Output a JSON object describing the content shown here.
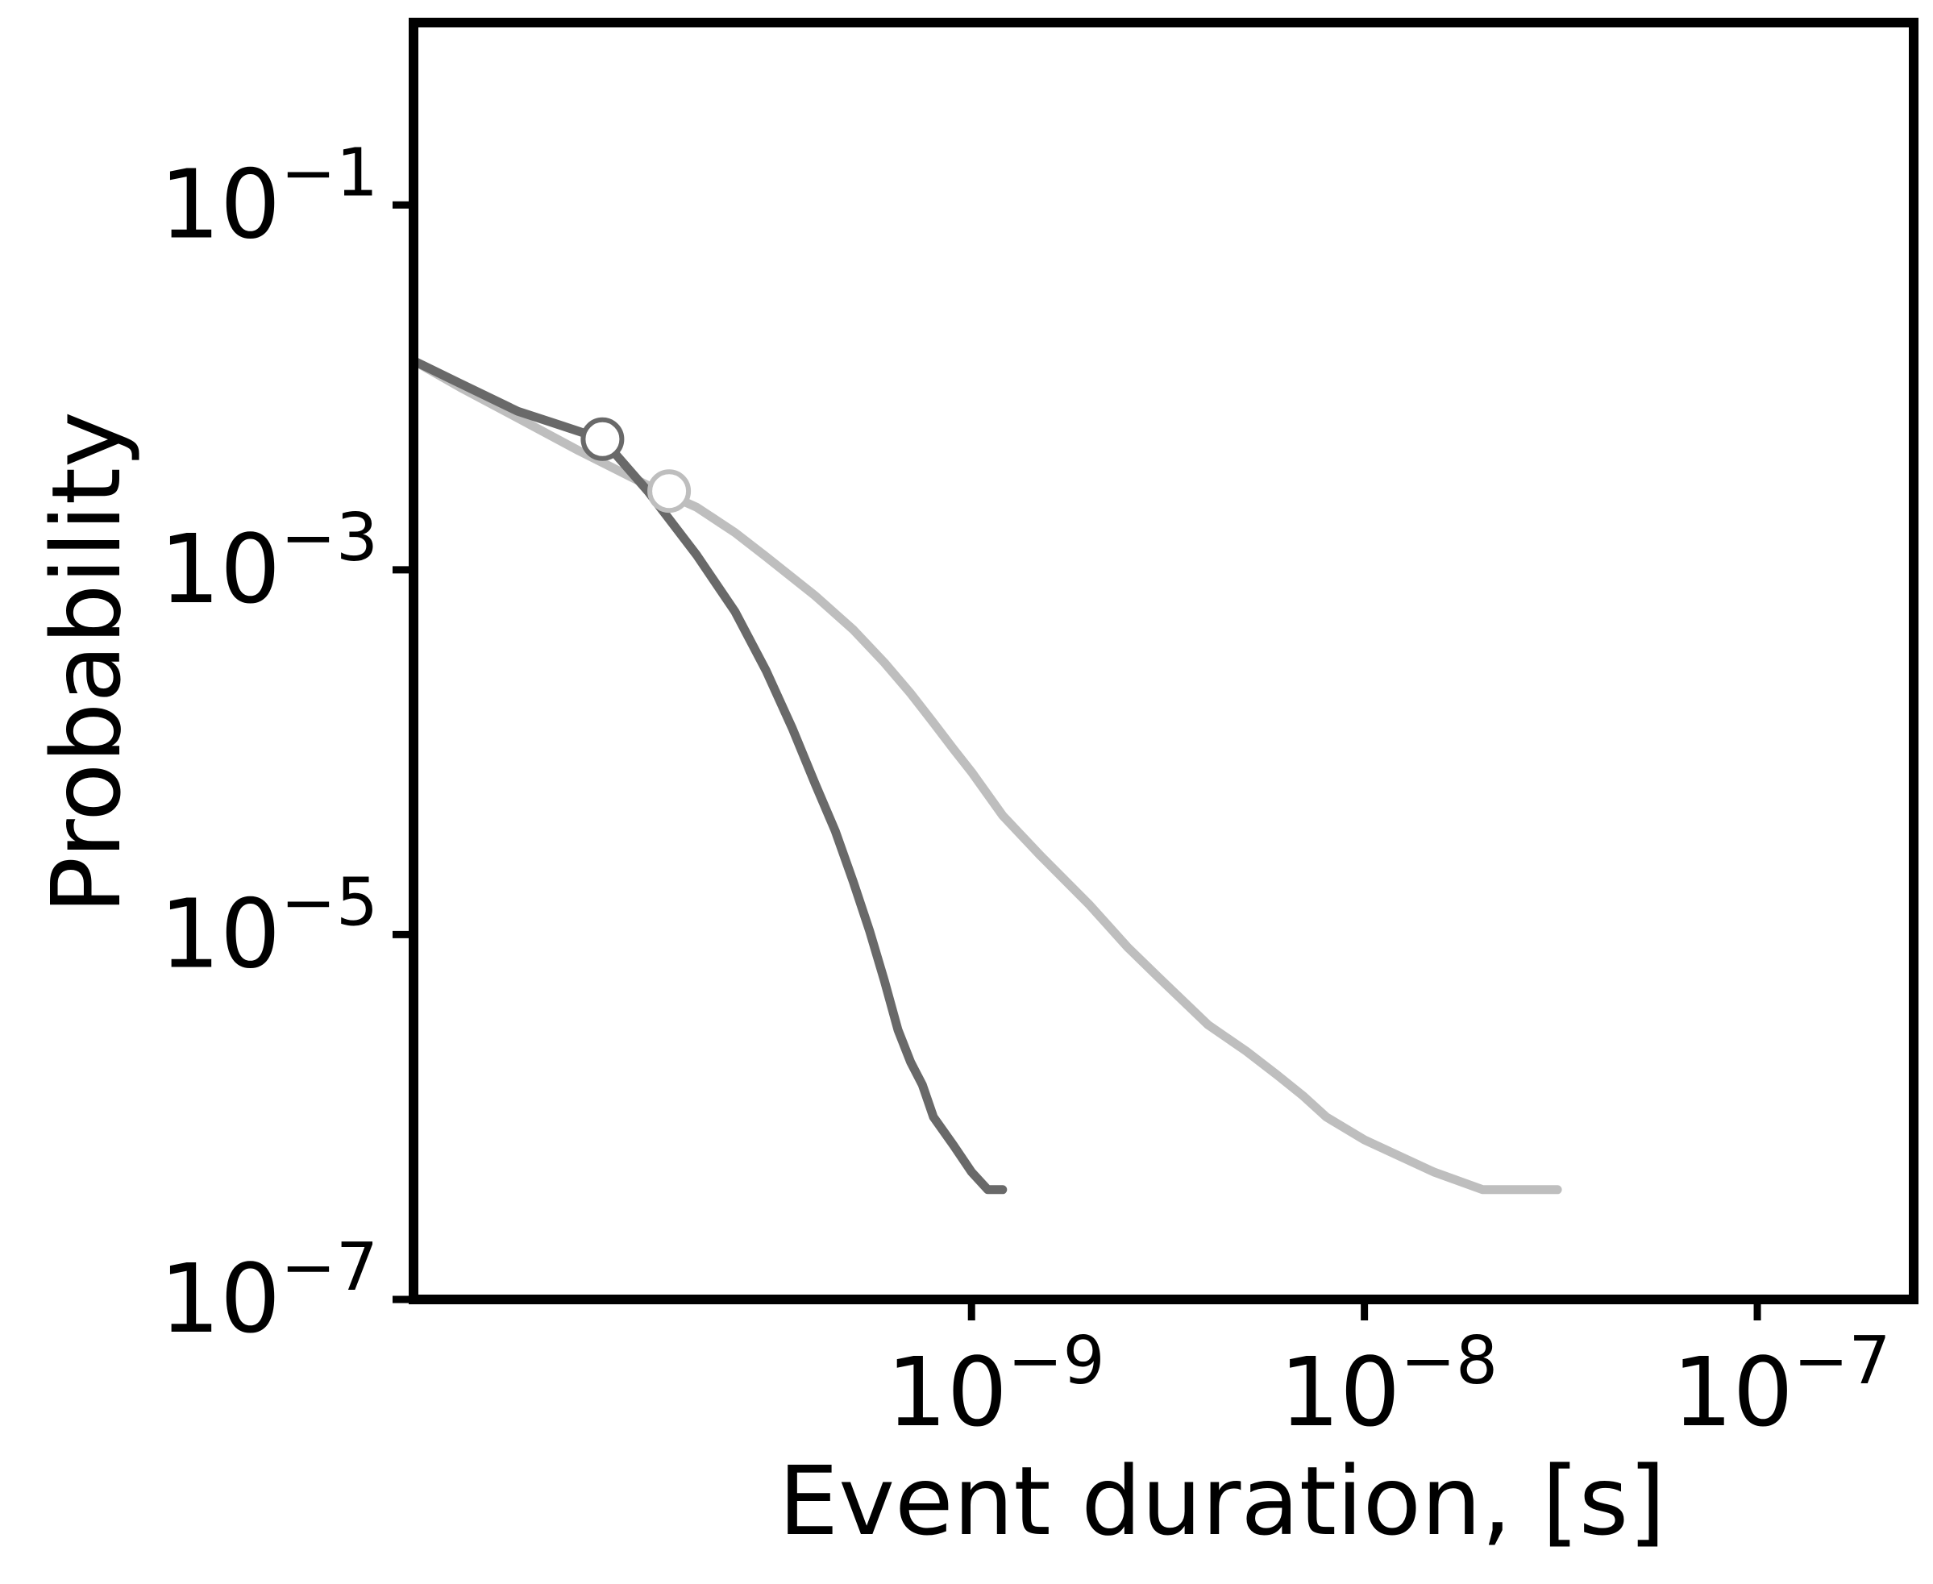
{
  "chart_data": {
    "type": "line",
    "title": "",
    "xlabel": "Event duration, [s]",
    "ylabel": "Probability",
    "xscale": "log",
    "yscale": "log",
    "xlim": [
      3.8e-11,
      2.5e-07
    ],
    "ylim": [
      1e-07,
      1
    ],
    "grid": false,
    "legend": "none",
    "x_ticks": [
      {
        "value": 1e-09,
        "base": "10",
        "exp": "−9"
      },
      {
        "value": 1e-08,
        "base": "10",
        "exp": "−8"
      },
      {
        "value": 1e-07,
        "base": "10",
        "exp": "−7"
      }
    ],
    "y_ticks": [
      {
        "value": 0.1,
        "base": "10",
        "exp": "−1"
      },
      {
        "value": 0.001,
        "base": "10",
        "exp": "−3"
      },
      {
        "value": 1e-05,
        "base": "10",
        "exp": "−5"
      },
      {
        "value": 1e-07,
        "base": "10",
        "exp": "−7"
      }
    ],
    "series": [
      {
        "color": "#bebebe",
        "marker": {
          "x": 1.7e-10,
          "y": 0.0027
        },
        "x": [
          3.8e-11,
          5e-11,
          7e-11,
          1e-10,
          1.5e-10,
          2e-10,
          2.5e-10,
          3e-10,
          4e-10,
          5e-10,
          6e-10,
          7e-10,
          8e-10,
          9e-10,
          1e-09,
          1.2e-09,
          1.5e-09,
          2e-09,
          2.5e-09,
          3e-09,
          4e-09,
          5e-09,
          6e-09,
          7e-09,
          8e-09,
          1e-08,
          1.5e-08,
          2e-08,
          2.8e-08,
          3.1e-08
        ],
        "y": [
          0.014,
          0.01,
          0.0068,
          0.0045,
          0.0029,
          0.0022,
          0.0016,
          0.00118,
          0.00072,
          0.00047,
          0.00031,
          0.00021,
          0.000145,
          0.000104,
          7.8e-05,
          4.5e-05,
          2.7e-05,
          1.45e-05,
          8.5e-06,
          5.8e-06,
          3.2e-06,
          2.3e-06,
          1.7e-06,
          1.3e-06,
          1e-06,
          7.5e-07,
          5e-07,
          4e-07,
          4e-07,
          4e-07
        ]
      },
      {
        "color": "#696969",
        "marker": {
          "x": 1.15e-10,
          "y": 0.0052
        },
        "x": [
          3.8e-11,
          5e-11,
          7e-11,
          9e-11,
          1.15e-10,
          1.5e-10,
          2e-10,
          2.5e-10,
          3e-10,
          3.5e-10,
          4e-10,
          4.5e-10,
          5e-10,
          5.5e-10,
          6e-10,
          6.5e-10,
          7e-10,
          7.5e-10,
          8e-10,
          9e-10,
          1e-09,
          1.1e-09,
          1.2e-09
        ],
        "y": [
          0.014,
          0.0105,
          0.0074,
          0.0062,
          0.0052,
          0.0027,
          0.0012,
          0.00059,
          0.00028,
          0.000135,
          6.7e-05,
          3.7e-05,
          1.95e-05,
          1.05e-05,
          5.6e-06,
          3e-06,
          2e-06,
          1.5e-06,
          1e-06,
          7e-07,
          5e-07,
          4e-07,
          4e-07
        ]
      }
    ]
  }
}
